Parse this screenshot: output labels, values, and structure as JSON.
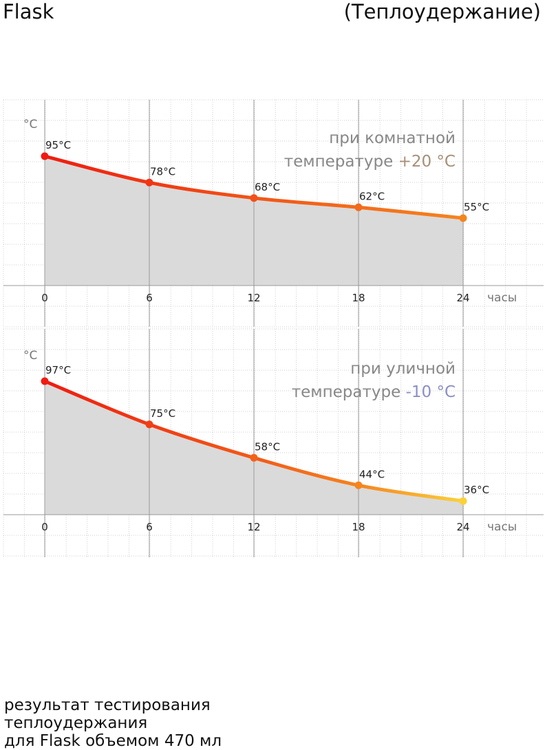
{
  "header": {
    "brand": "Flask",
    "subtitle": "(Теплоудержание)"
  },
  "colors": {
    "curve_start": "#ee1c10",
    "curve_mid": "#f5841f",
    "curve_end": "#fbd13a",
    "fill": "#dadada",
    "room_temp_accent": "#a68f78",
    "street_temp_accent": "#8a8fc4",
    "note_text": "#888888",
    "grid": "#cccccc"
  },
  "chart_data": [
    {
      "type": "line",
      "ylabel": "°C",
      "xlabel": "часы",
      "x": [
        0,
        6,
        12,
        18,
        24
      ],
      "xticks": [
        "0",
        "6",
        "12",
        "18",
        "24"
      ],
      "series": [
        {
          "values": [
            95,
            78,
            68,
            62,
            55
          ],
          "labels": [
            "95°C",
            "78°C",
            "68°C",
            "62°C",
            "55°C"
          ]
        }
      ],
      "annotation": {
        "line1": "при комнатной",
        "line2_text": "температуре ",
        "line2_value": "+20 °C"
      },
      "area_fill": true,
      "grid": true
    },
    {
      "type": "line",
      "ylabel": "°C",
      "xlabel": "часы",
      "x": [
        0,
        6,
        12,
        18,
        24
      ],
      "xticks": [
        "0",
        "6",
        "12",
        "18",
        "24"
      ],
      "series": [
        {
          "values": [
            97,
            75,
            58,
            44,
            36
          ],
          "labels": [
            "97°C",
            "75°C",
            "58°C",
            "44°C",
            "36°C"
          ]
        }
      ],
      "annotation": {
        "line1": "при уличной",
        "line2_text": "температуре ",
        "line2_value": "-10 °C"
      },
      "area_fill": true,
      "grid": true
    }
  ],
  "footer": {
    "line1": "результат тестирования",
    "line2": "теплоудержания",
    "line3": "для Flask объемом 470 мл"
  }
}
